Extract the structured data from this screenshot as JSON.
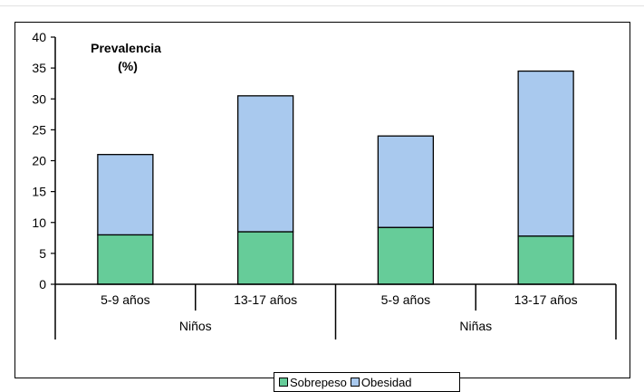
{
  "chart_data": {
    "type": "bar",
    "stacked": true,
    "title": "Prevalencia\n(%)",
    "groups": [
      "Niños",
      "Niñas"
    ],
    "categories": [
      "5-9 años",
      "13-17 años",
      "5-9 años",
      "13-17 años"
    ],
    "category_group": [
      "Niños",
      "Niños",
      "Niñas",
      "Niñas"
    ],
    "series": [
      {
        "name": "Sobrepeso",
        "values": [
          8,
          8.5,
          9.2,
          7.8
        ],
        "color": "#66cc99"
      },
      {
        "name": "Obesidad",
        "values": [
          13,
          22,
          14.8,
          26.7
        ],
        "color": "#a9c9ee"
      }
    ],
    "ylim": [
      0,
      40
    ],
    "yticks": [
      0,
      5,
      10,
      15,
      20,
      25,
      30,
      35,
      40
    ],
    "grid": false,
    "legend_position": "bottom"
  }
}
